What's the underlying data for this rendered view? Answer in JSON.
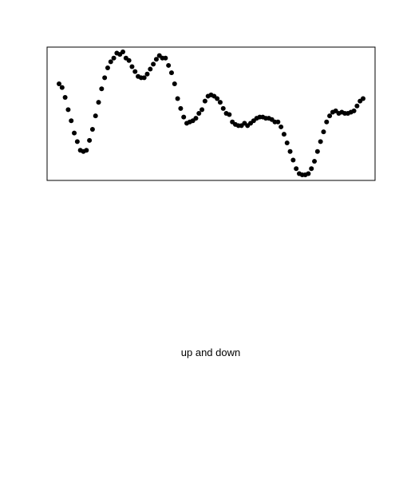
{
  "caption": "up and down",
  "chart_data": {
    "type": "scatter",
    "title": "",
    "xlabel": "",
    "ylabel": "",
    "axes_visible": false,
    "grid": false,
    "legend": "none",
    "marker_color": "#000000",
    "box_color": "#000000",
    "xlim": [
      0,
      1
    ],
    "ylim": [
      0,
      1
    ],
    "x": [
      0,
      0.01,
      0.02,
      0.03,
      0.04,
      0.05,
      0.06,
      0.07,
      0.08,
      0.09,
      0.1,
      0.11,
      0.12,
      0.13,
      0.14,
      0.15,
      0.16,
      0.17,
      0.18,
      0.19,
      0.2,
      0.21,
      0.22,
      0.23,
      0.24,
      0.25,
      0.26,
      0.27,
      0.28,
      0.29,
      0.3,
      0.31,
      0.32,
      0.33,
      0.34,
      0.35,
      0.36,
      0.37,
      0.38,
      0.39,
      0.4,
      0.41,
      0.42,
      0.43,
      0.44,
      0.45,
      0.46,
      0.47,
      0.48,
      0.49,
      0.5,
      0.51,
      0.52,
      0.53,
      0.54,
      0.55,
      0.56,
      0.57,
      0.58,
      0.59,
      0.6,
      0.61,
      0.62,
      0.63,
      0.64,
      0.65,
      0.66,
      0.67,
      0.68,
      0.69,
      0.7,
      0.71,
      0.72,
      0.73,
      0.74,
      0.75,
      0.76,
      0.77,
      0.78,
      0.79,
      0.8,
      0.81,
      0.82,
      0.83,
      0.84,
      0.85,
      0.86,
      0.87,
      0.88,
      0.89,
      0.9,
      0.91,
      0.92,
      0.93,
      0.94,
      0.95,
      0.96,
      0.97,
      0.98,
      0.99,
      1
    ],
    "y": [
      0.74,
      0.71,
      0.63,
      0.53,
      0.44,
      0.34,
      0.27,
      0.2,
      0.19,
      0.2,
      0.28,
      0.37,
      0.48,
      0.59,
      0.7,
      0.79,
      0.87,
      0.92,
      0.95,
      0.99,
      0.98,
      1,
      0.95,
      0.93,
      0.88,
      0.84,
      0.8,
      0.79,
      0.79,
      0.82,
      0.86,
      0.9,
      0.94,
      0.97,
      0.95,
      0.95,
      0.89,
      0.83,
      0.74,
      0.62,
      0.54,
      0.47,
      0.42,
      0.43,
      0.44,
      0.46,
      0.5,
      0.53,
      0.6,
      0.64,
      0.65,
      0.64,
      0.62,
      0.59,
      0.54,
      0.5,
      0.49,
      0.43,
      0.41,
      0.4,
      0.4,
      0.42,
      0.4,
      0.42,
      0.44,
      0.46,
      0.47,
      0.47,
      0.46,
      0.46,
      0.45,
      0.43,
      0.43,
      0.39,
      0.33,
      0.26,
      0.19,
      0.12,
      0.05,
      0.01,
      0,
      0,
      0.01,
      0.05,
      0.11,
      0.19,
      0.27,
      0.35,
      0.43,
      0.48,
      0.51,
      0.52,
      0.5,
      0.51,
      0.5,
      0.5,
      0.51,
      0.52,
      0.56,
      0.6,
      0.62
    ]
  }
}
